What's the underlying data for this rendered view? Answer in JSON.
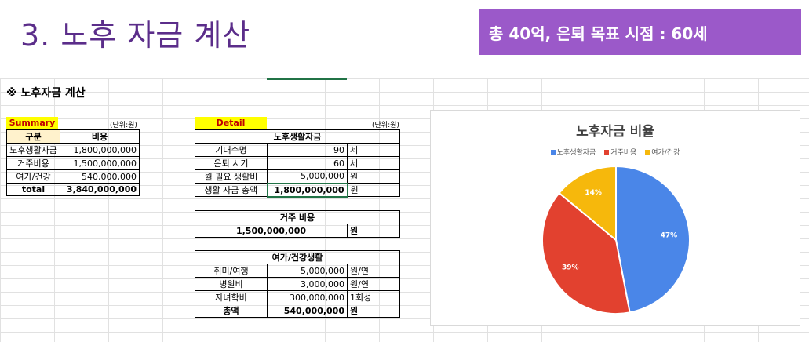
{
  "slide": {
    "title": "3. 노후 자금 계산",
    "banner": "총 40억, 은퇴 목표 시점  : 60세"
  },
  "sheet": {
    "title": "※ 노후자금 계산",
    "summary": {
      "label": "Summary",
      "unit": "(단위:원)",
      "headers": [
        "구분",
        "비용"
      ],
      "rows": [
        [
          "노후생활자금",
          "1,800,000,000"
        ],
        [
          "거주비용",
          "1,500,000,000"
        ],
        [
          "여가/건강",
          "540,000,000"
        ],
        [
          "total",
          "3,840,000,000"
        ]
      ]
    },
    "detail": {
      "label": "Detail",
      "unit": "(단위:원)",
      "living": {
        "header": "노후생활자금",
        "rows": [
          [
            "기대수명",
            "90",
            "세"
          ],
          [
            "은퇴 시기",
            "60",
            "세"
          ],
          [
            "월 필요 생활비",
            "5,000,000",
            "원"
          ],
          [
            "생활 자금 총액",
            "1,800,000,000",
            "원"
          ]
        ]
      },
      "housing": {
        "header": "거주 비용",
        "value": "1,500,000,000",
        "unit": "원"
      },
      "leisure": {
        "header": "여가/건강생활",
        "rows": [
          [
            "취미/여행",
            "5,000,000",
            "원/연"
          ],
          [
            "병원비",
            "3,000,000",
            "원/연"
          ],
          [
            "자녀학비",
            "300,000,000",
            "1회성"
          ],
          [
            "총액",
            "540,000,000",
            "원"
          ]
        ]
      }
    }
  },
  "chart_data": {
    "type": "pie",
    "title": "노후자금 비율",
    "categories": [
      "노후생활자금",
      "거주비용",
      "여가/건강"
    ],
    "values": [
      47,
      39,
      14
    ],
    "labels": [
      "47%",
      "39%",
      "14%"
    ],
    "colors": [
      "#4a86e8",
      "#e2412f",
      "#f6b80c"
    ],
    "legend": "top"
  }
}
